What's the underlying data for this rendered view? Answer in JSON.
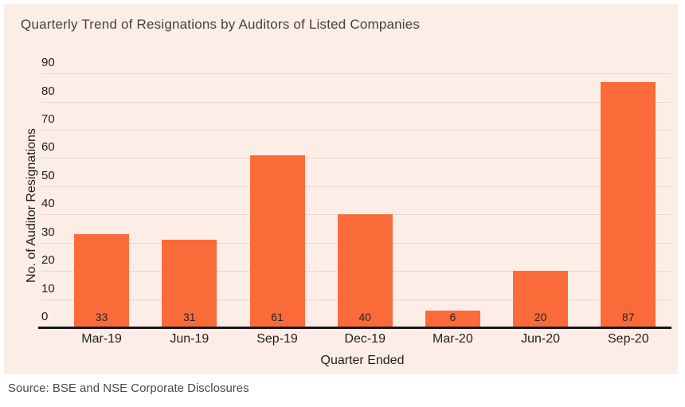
{
  "chart_data": {
    "type": "bar",
    "title": "Quarterly Trend of Resignations by Auditors of Listed Companies",
    "categories": [
      "Mar-19",
      "Jun-19",
      "Sep-19",
      "Dec-19",
      "Mar-20",
      "Jun-20",
      "Sep-20"
    ],
    "values": [
      33,
      31,
      61,
      40,
      6,
      20,
      87
    ],
    "xlabel": "Quarter Ended",
    "ylabel": "No. of Auditor Resignations",
    "ylim": [
      0,
      90
    ],
    "ytick_step": 10,
    "yticks": [
      0,
      10,
      20,
      30,
      40,
      50,
      60,
      70,
      80,
      90
    ],
    "grid": true,
    "legend": false,
    "value_labels_shown": true,
    "bar_color": "#FB6B3A",
    "plot_background": "#FCEEE7",
    "gridline_color": "#E6D6CE",
    "axis_line_color": "#161616",
    "title_color": "#434343",
    "tick_text_color": "#1f1f1f",
    "value_label_color": "#262626"
  },
  "source_note": "Source: BSE and NSE Corporate Disclosures"
}
